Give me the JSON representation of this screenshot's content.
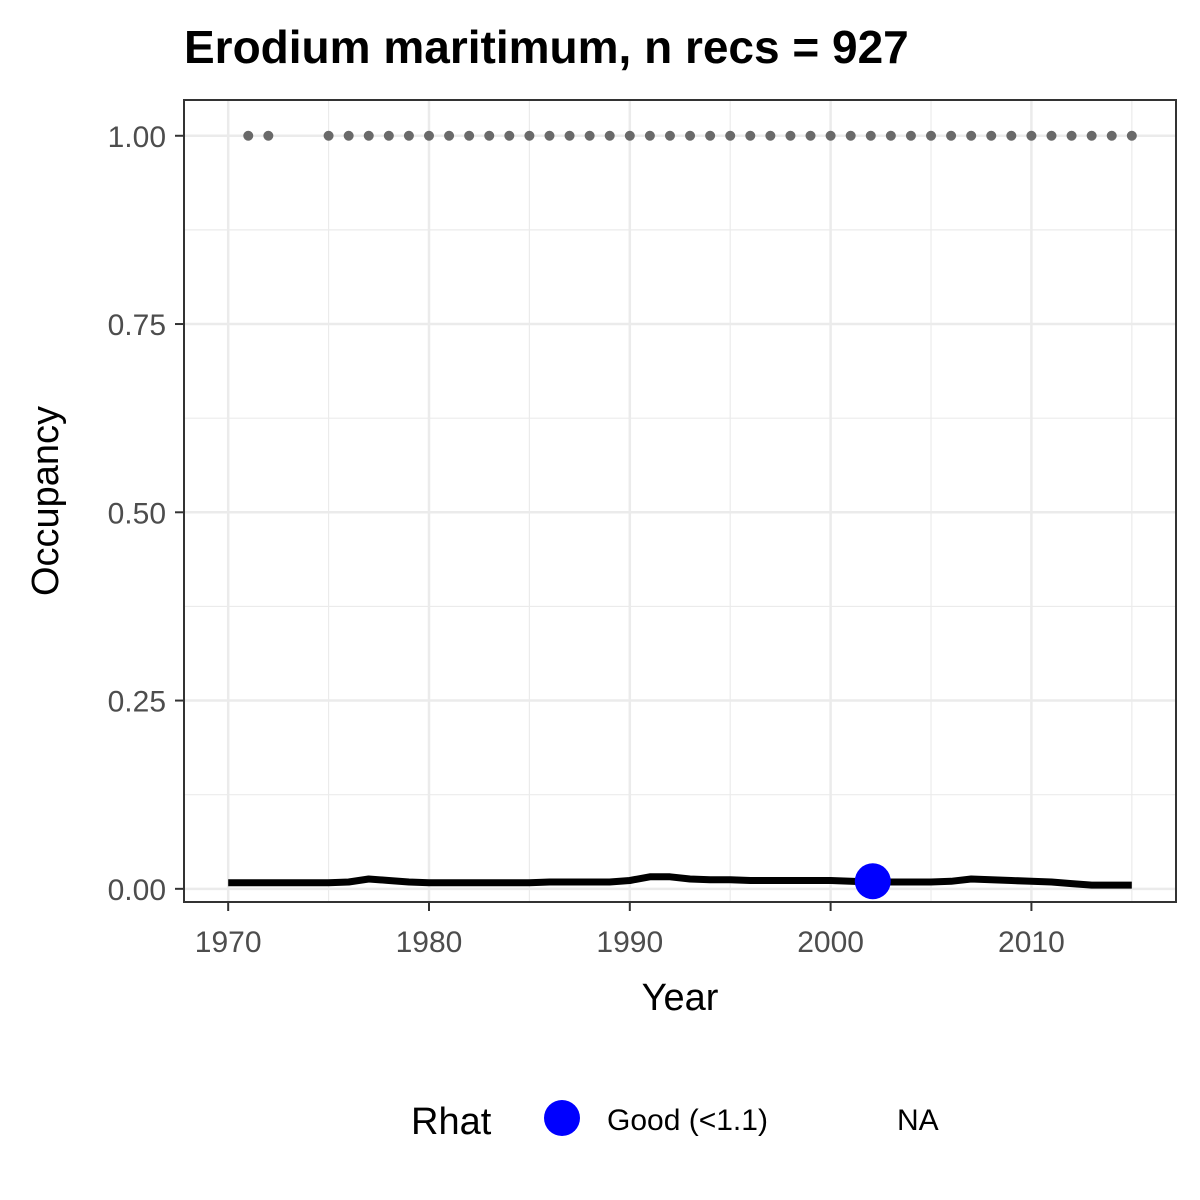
{
  "chart_data": {
    "type": "line",
    "title": "Erodium maritimum, n recs = 927",
    "xlabel": "Year",
    "ylabel": "Occupancy",
    "xlim": [
      1967.8,
      2017.2
    ],
    "ylim": [
      -0.0175,
      1.0475
    ],
    "x_ticks": [
      1970,
      1980,
      1990,
      2000,
      2010
    ],
    "y_ticks": [
      0.0,
      0.25,
      0.5,
      0.75,
      1.0
    ],
    "y_tick_labels": [
      "0.00",
      "0.25",
      "0.50",
      "0.75",
      "1.00"
    ],
    "x_tick_labels": [
      "1970",
      "1980",
      "1990",
      "2000",
      "2010"
    ],
    "grid": true,
    "series": [
      {
        "kind": "line",
        "color": "#000000",
        "x": [
          1970,
          1971,
          1972,
          1973,
          1974,
          1975,
          1976,
          1977,
          1978,
          1979,
          1980,
          1981,
          1982,
          1983,
          1984,
          1985,
          1986,
          1987,
          1988,
          1989,
          1990,
          1991,
          1992,
          1993,
          1994,
          1995,
          1996,
          1997,
          1998,
          1999,
          2000,
          2001,
          2002,
          2003,
          2004,
          2005,
          2006,
          2007,
          2008,
          2009,
          2010,
          2011,
          2012,
          2013,
          2014,
          2015
        ],
        "values": [
          0.008,
          0.008,
          0.008,
          0.008,
          0.008,
          0.008,
          0.009,
          0.013,
          0.011,
          0.009,
          0.008,
          0.008,
          0.008,
          0.008,
          0.008,
          0.008,
          0.009,
          0.009,
          0.009,
          0.009,
          0.011,
          0.016,
          0.016,
          0.013,
          0.012,
          0.012,
          0.011,
          0.011,
          0.011,
          0.011,
          0.011,
          0.01,
          0.009,
          0.009,
          0.009,
          0.009,
          0.01,
          0.013,
          0.012,
          0.011,
          0.01,
          0.009,
          0.007,
          0.005,
          0.005,
          0.005
        ]
      },
      {
        "kind": "points",
        "color": "#696969",
        "x": [
          1971,
          1972,
          1975,
          1976,
          1977,
          1978,
          1979,
          1980,
          1981,
          1982,
          1983,
          1984,
          1985,
          1986,
          1987,
          1988,
          1989,
          1990,
          1991,
          1992,
          1993,
          1994,
          1995,
          1996,
          1997,
          1998,
          1999,
          2000,
          2001,
          2002,
          2003,
          2004,
          2005,
          2006,
          2007,
          2008,
          2009,
          2010,
          2011,
          2012,
          2013,
          2014,
          2015
        ],
        "values": [
          1,
          1,
          1,
          1,
          1,
          1,
          1,
          1,
          1,
          1,
          1,
          1,
          1,
          1,
          1,
          1,
          1,
          1,
          1,
          1,
          1,
          1,
          1,
          1,
          1,
          1,
          1,
          1,
          1,
          1,
          1,
          1,
          1,
          1,
          1,
          1,
          1,
          1,
          1,
          1,
          1,
          1,
          1
        ]
      },
      {
        "kind": "rhat-point",
        "rhat": "Good (<1.1)",
        "color": "#0000ff",
        "x": [
          2002.1
        ],
        "values": [
          0.01
        ]
      }
    ],
    "legend": {
      "title": "Rhat",
      "position": "bottom",
      "entries": [
        {
          "label": "Good (<1.1)",
          "color": "#0000ff"
        },
        {
          "label": "NA",
          "color": ""
        }
      ]
    }
  }
}
